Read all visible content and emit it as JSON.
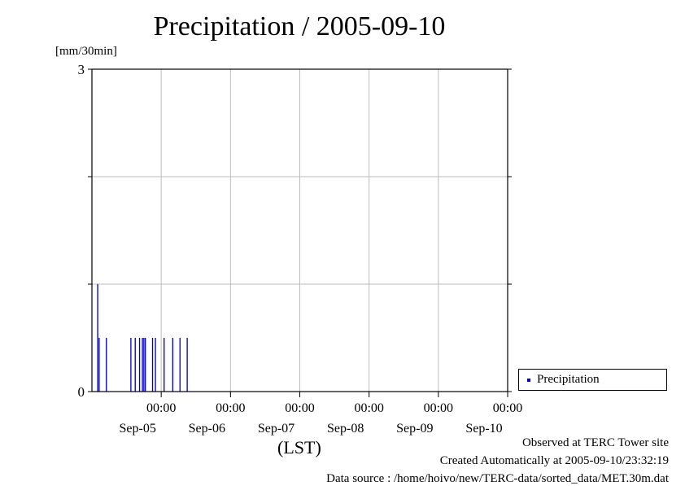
{
  "title": "Precipitation / 2005-09-10",
  "ylabel": "[mm/30min]",
  "xlabel": "(LST)",
  "legend": {
    "label": "Precipitation",
    "color": "#0000cc"
  },
  "footer": {
    "observed": "Observed at TERC Tower site",
    "created": "Created Automatically at 2005-09-10/23:32:19",
    "source": "Data source : /home/hoivo/new/TERC-data/sorted_data/MET.30m.dat"
  },
  "chart_data": {
    "type": "bar",
    "title": "Precipitation / 2005-09-10",
    "ylabel": "[mm/30min]",
    "xlabel": "(LST)",
    "xlim": [
      "2005-09-04 00:00",
      "2005-09-10 00:00"
    ],
    "ylim": [
      0,
      3
    ],
    "y_ticks": [
      0,
      3
    ],
    "y_gridlines": [
      1,
      2,
      3
    ],
    "x_ticks": [
      {
        "time": "2005-09-05 00:00",
        "label": "00:00",
        "date": "Sep-05"
      },
      {
        "time": "2005-09-06 00:00",
        "label": "00:00",
        "date": "Sep-06"
      },
      {
        "time": "2005-09-07 00:00",
        "label": "00:00",
        "date": "Sep-07"
      },
      {
        "time": "2005-09-08 00:00",
        "label": "00:00",
        "date": "Sep-08"
      },
      {
        "time": "2005-09-09 00:00",
        "label": "00:00",
        "date": "Sep-09"
      },
      {
        "time": "2005-09-10 00:00",
        "label": "00:00",
        "date": "Sep-10"
      }
    ],
    "grid": true,
    "legend_position": "right",
    "series": [
      {
        "name": "Precipitation",
        "color": "#0000cc",
        "points": [
          {
            "time": "2005-09-04 02:00",
            "value": 1.0
          },
          {
            "time": "2005-09-04 02:30",
            "value": 0.5
          },
          {
            "time": "2005-09-04 05:00",
            "value": 0.5
          },
          {
            "time": "2005-09-04 13:30",
            "value": 0.5
          },
          {
            "time": "2005-09-04 15:00",
            "value": 0.5
          },
          {
            "time": "2005-09-04 16:30",
            "value": 0.5
          },
          {
            "time": "2005-09-04 17:30",
            "value": 0.5
          },
          {
            "time": "2005-09-04 18:00",
            "value": 0.5
          },
          {
            "time": "2005-09-04 18:30",
            "value": 0.5
          },
          {
            "time": "2005-09-04 21:00",
            "value": 0.5
          },
          {
            "time": "2005-09-04 22:00",
            "value": 0.5
          },
          {
            "time": "2005-09-05 01:00",
            "value": 0.5
          },
          {
            "time": "2005-09-05 04:00",
            "value": 0.5
          },
          {
            "time": "2005-09-05 06:30",
            "value": 0.5
          },
          {
            "time": "2005-09-05 09:00",
            "value": 0.5
          }
        ]
      }
    ]
  }
}
